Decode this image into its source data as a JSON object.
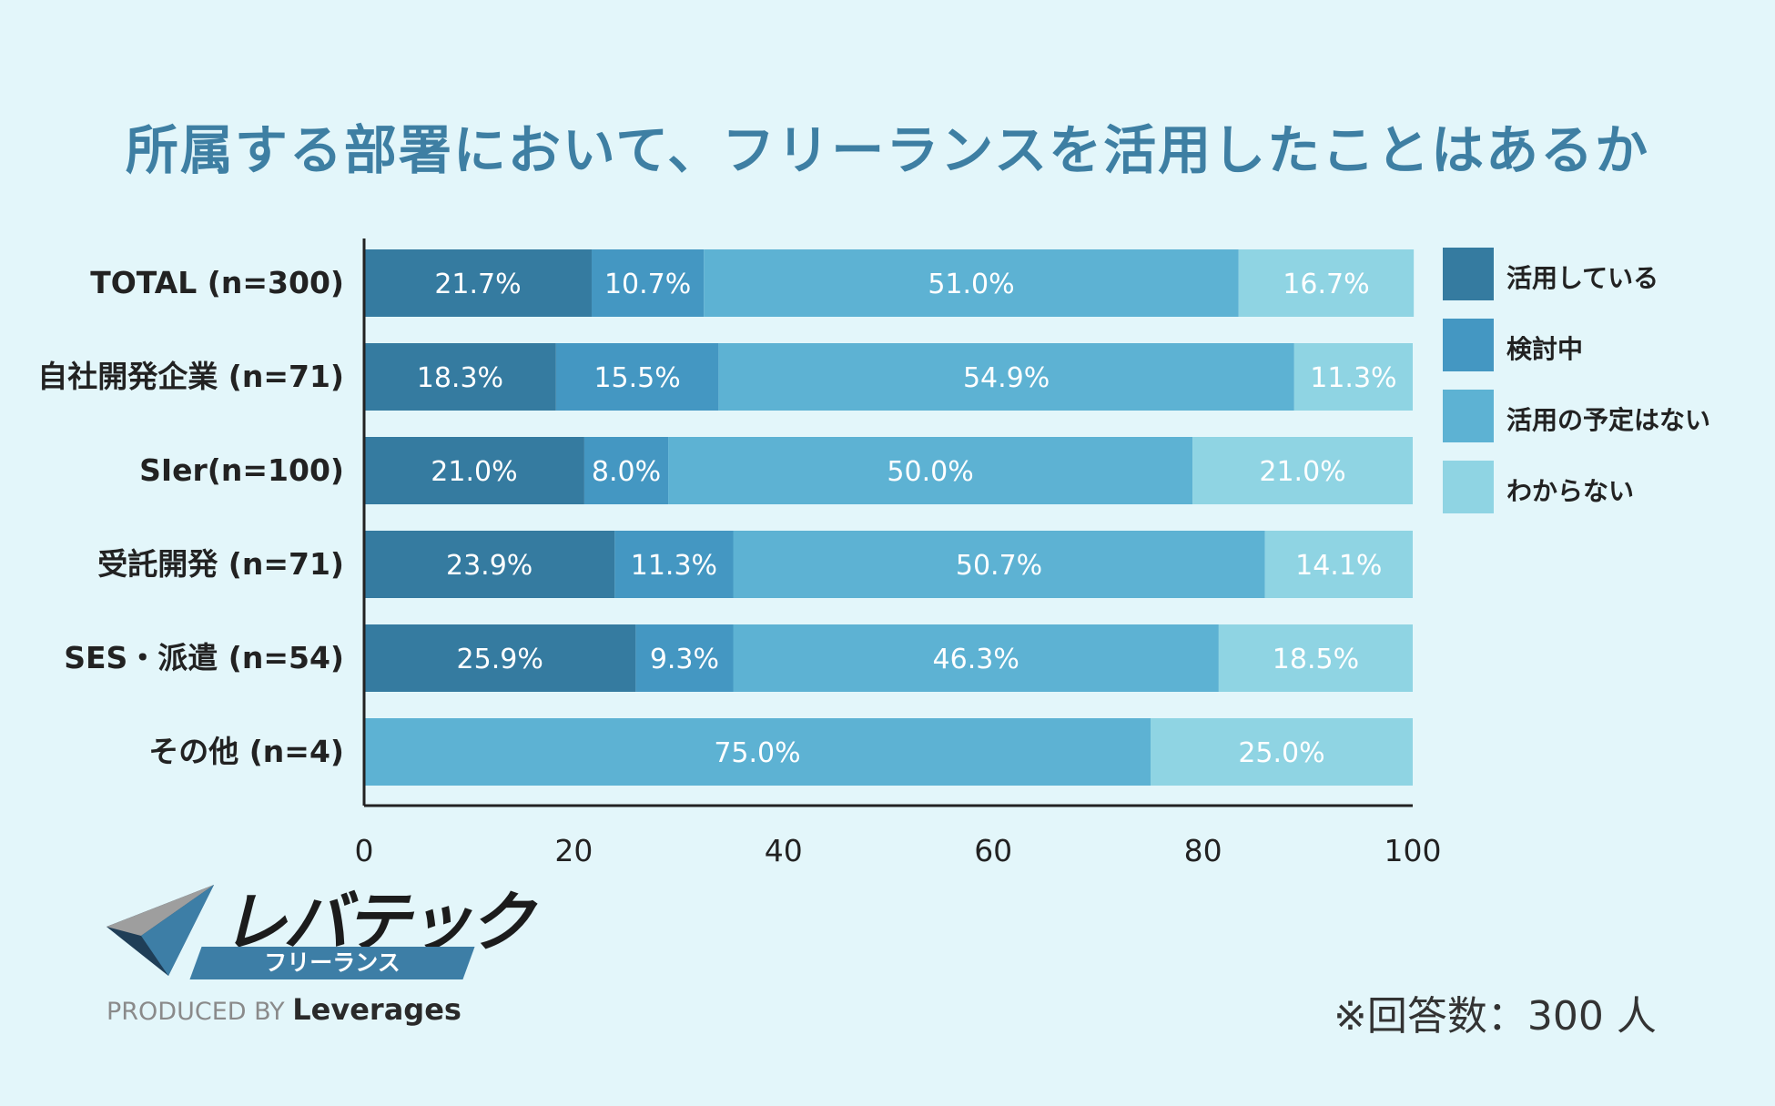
{
  "colors": {
    "background": "#e3f6fa",
    "title": "#3e7fa3",
    "series": [
      "#357ba0",
      "#4497c2",
      "#5db2d3",
      "#8fd4e3"
    ],
    "axis": "#222222"
  },
  "chart_data": {
    "type": "bar",
    "orientation": "horizontal",
    "stacked": true,
    "title": "所属する部署において、フリーランスを活用したことはあるか",
    "categories": [
      "TOTAL (n=300)",
      "自社開発企業 (n=71)",
      "SIer(n=100)",
      "受託開発 (n=71)",
      "SES・派遣 (n=54)",
      "その他 (n=4)"
    ],
    "series": [
      {
        "name": "活用している",
        "values": [
          21.7,
          18.3,
          21.0,
          23.9,
          25.9,
          0
        ],
        "labels": [
          "21.7%",
          "18.3%",
          "21.0%",
          "23.9%",
          "25.9%",
          ""
        ]
      },
      {
        "name": "検討中",
        "values": [
          10.7,
          15.5,
          8.0,
          11.3,
          9.3,
          0
        ],
        "labels": [
          "10.7%",
          "15.5%",
          "8.0%",
          "11.3%",
          "9.3%",
          ""
        ]
      },
      {
        "name": "活用の予定はない",
        "values": [
          51.0,
          54.9,
          50.0,
          50.7,
          46.3,
          75.0
        ],
        "labels": [
          "51.0%",
          "54.9%",
          "50.0%",
          "50.7%",
          "46.3%",
          "75.0%"
        ]
      },
      {
        "name": "わからない",
        "values": [
          16.7,
          11.3,
          21.0,
          14.1,
          18.5,
          25.0
        ],
        "labels": [
          "16.7%",
          "11.3%",
          "21.0%",
          "14.1%",
          "18.5%",
          "25.0%"
        ]
      }
    ],
    "xlim": [
      0,
      100
    ],
    "xticks": [
      "0",
      "20",
      "40",
      "60",
      "80",
      "100"
    ],
    "legend_position": "right"
  },
  "logo": {
    "wordmark": "レバテック",
    "sub": "フリーランス",
    "produced_by": "PRODUCED BY",
    "company": "Leverages"
  },
  "footnote": "※回答数：300 人"
}
